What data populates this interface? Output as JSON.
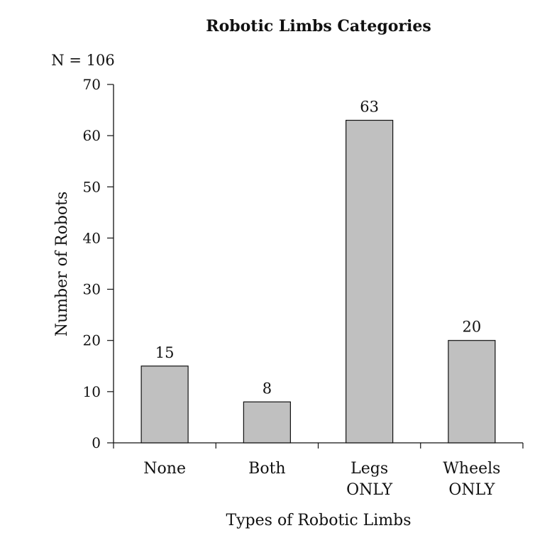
{
  "chart_data": {
    "type": "bar",
    "title": "Robotic Limbs Categories",
    "annotation": "N = 106",
    "xlabel": "Types of Robotic Limbs",
    "ylabel": "Number of Robots",
    "ylim": [
      0,
      70
    ],
    "yticks": [
      0,
      10,
      20,
      30,
      40,
      50,
      60,
      70
    ],
    "categories": [
      [
        "None"
      ],
      [
        "Both"
      ],
      [
        "Legs",
        "ONLY"
      ],
      [
        "Wheels",
        "ONLY"
      ]
    ],
    "values": [
      15,
      8,
      63,
      20
    ],
    "grid": false,
    "bar_color": "#c0c0c0",
    "bar_border_color": "#111111"
  }
}
